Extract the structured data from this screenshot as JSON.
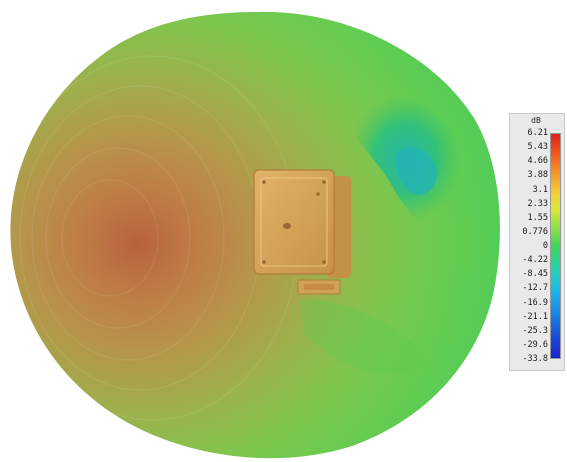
{
  "legend": {
    "unit": "dB",
    "ticks": [
      "6.21",
      "5.43",
      "4.66",
      "3.88",
      "3.1",
      "2.33",
      "1.55",
      "0.776",
      "0",
      "-4.22",
      "-8.45",
      "-12.7",
      "-16.9",
      "-21.1",
      "-25.3",
      "-29.6",
      "-33.8"
    ],
    "colors": [
      "#e0201c",
      "#f59a28",
      "#d6e63e",
      "#3fd45a",
      "#25cfc0",
      "#1eb6e8",
      "#1a22c8"
    ]
  },
  "pattern": {
    "main_lobe_color": "#b9683f",
    "body_color": "#72c94c",
    "null_color": "#27b99a"
  },
  "device": {
    "enclosure_color": "#d9a55c"
  }
}
